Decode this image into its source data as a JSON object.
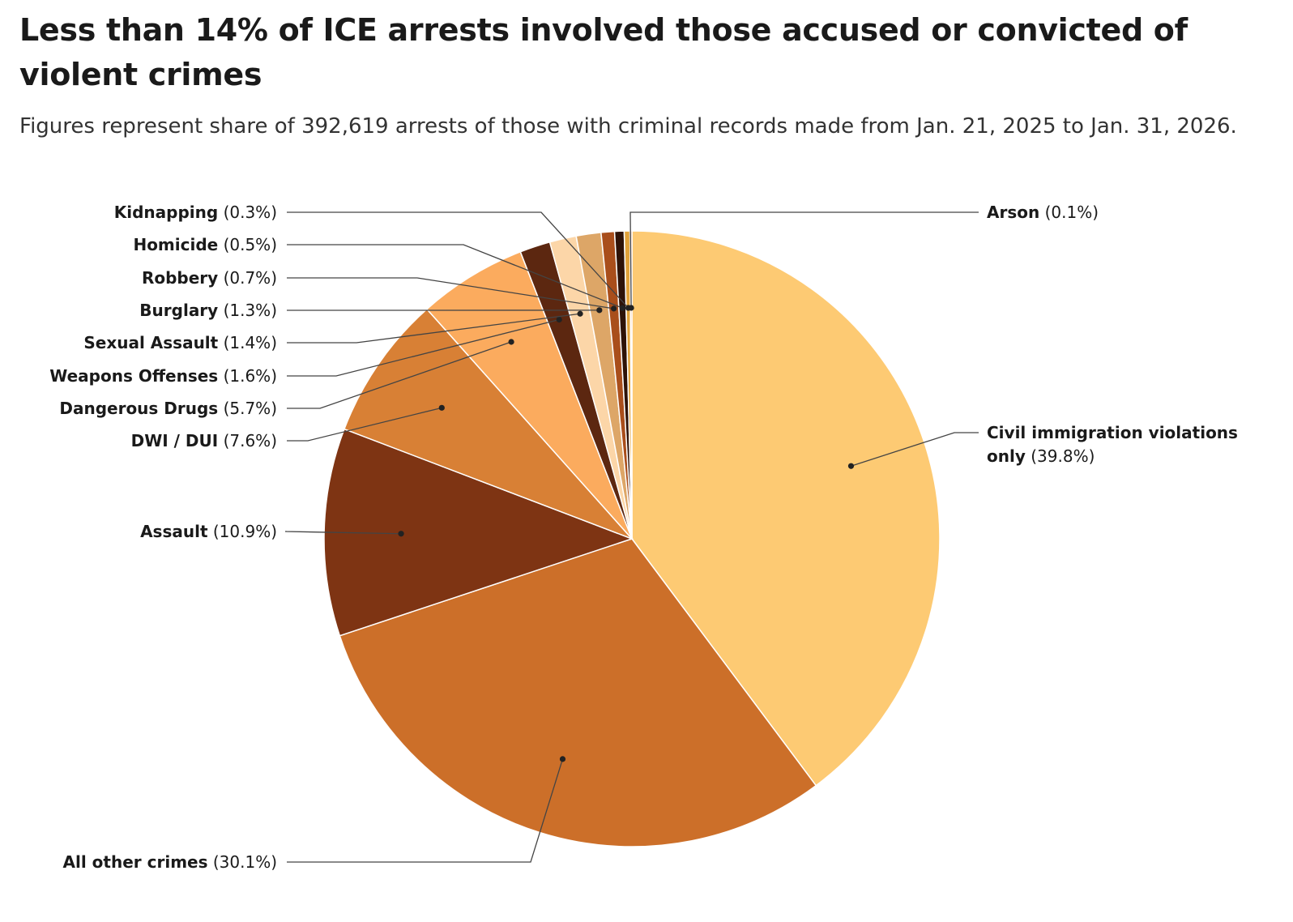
{
  "title": "Less than 14% of ICE arrests involved those accused or convicted of violent crimes",
  "subtitle": "Figures represent share of 392,619 arrests of those with criminal records made from Jan. 21, 2025 to Jan. 31, 2026.",
  "chart_data": {
    "type": "pie",
    "title": "Less than 14% of ICE arrests involved those accused or convicted of violent crimes",
    "subtitle": "Figures represent share of 392,619 arrests of those with criminal records made from Jan. 21, 2025 to Jan. 31, 2026.",
    "start": "12 o'clock",
    "direction": "clockwise",
    "slices": [
      {
        "label": "Civil immigration violations only",
        "label_line2": "only",
        "value": 39.8,
        "pct_text": "(39.8%)",
        "color": "#fdca73"
      },
      {
        "label": "All other crimes",
        "value": 30.1,
        "pct_text": "(30.1%)",
        "color": "#cc6f29"
      },
      {
        "label": "Assault",
        "value": 10.9,
        "pct_text": "(10.9%)",
        "color": "#7e3413"
      },
      {
        "label": "DWI / DUI",
        "value": 7.6,
        "pct_text": "(7.6%)",
        "color": "#d88035"
      },
      {
        "label": "Dangerous Drugs",
        "value": 5.7,
        "pct_text": "(5.7%)",
        "color": "#fbab5e"
      },
      {
        "label": "Weapons Offenses",
        "value": 1.6,
        "pct_text": "(1.6%)",
        "color": "#5c2710"
      },
      {
        "label": "Sexual Assault",
        "value": 1.4,
        "pct_text": "(1.4%)",
        "color": "#fcd6a8"
      },
      {
        "label": "Burglary",
        "value": 1.3,
        "pct_text": "(1.3%)",
        "color": "#dda667"
      },
      {
        "label": "Robbery",
        "value": 0.7,
        "pct_text": "(0.7%)",
        "color": "#a94e1b"
      },
      {
        "label": "Homicide",
        "value": 0.5,
        "pct_text": "(0.5%)",
        "color": "#2e1207"
      },
      {
        "label": "Kidnapping",
        "value": 0.3,
        "pct_text": "(0.3%)",
        "color": "#e1a23a"
      },
      {
        "label": "Arson",
        "value": 0.1,
        "pct_text": "(0.1%)",
        "color": "#f59a5a"
      }
    ]
  }
}
